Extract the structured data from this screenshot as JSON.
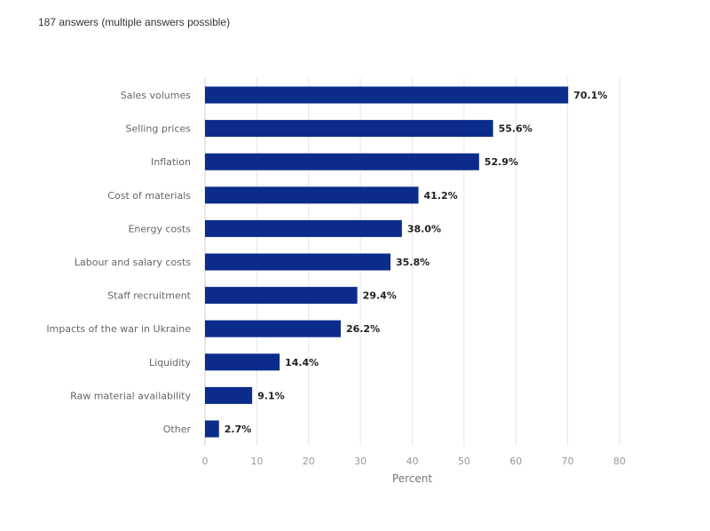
{
  "subtitle": "187 answers (multiple answers possible)",
  "chart_data": {
    "type": "bar",
    "orientation": "horizontal",
    "categories": [
      "Sales volumes",
      "Selling prices",
      "Inflation",
      "Cost of materials",
      "Energy costs",
      "Labour and salary costs",
      "Staff recruitment",
      "Impacts of the war in Ukraine",
      "Liquidity",
      "Raw material availability",
      "Other"
    ],
    "values": [
      70.1,
      55.6,
      52.9,
      41.2,
      38.0,
      35.8,
      29.4,
      26.2,
      14.4,
      9.1,
      2.7
    ],
    "value_labels": [
      "70.1%",
      "55.6%",
      "52.9%",
      "41.2%",
      "38.0%",
      "35.8%",
      "29.4%",
      "26.2%",
      "14.4%",
      "9.1%",
      "2.7%"
    ],
    "xlabel": "Percent",
    "ylabel": "",
    "xlim": [
      0,
      80
    ],
    "xticks": [
      "0",
      "10",
      "20",
      "30",
      "40",
      "50",
      "60",
      "70",
      "80"
    ],
    "grid": true,
    "bar_color": "#0c2c8c"
  }
}
